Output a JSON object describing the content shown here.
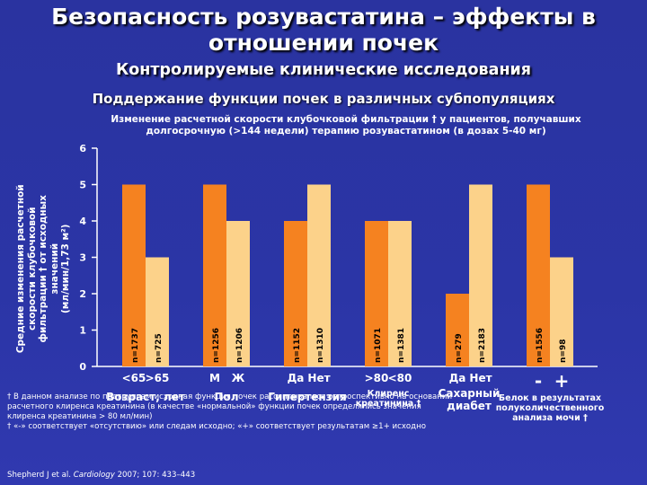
{
  "header": {
    "title_line1": "Безопасность розувастатина – эффекты в",
    "title_line2": "отношении почек",
    "subtitle": "Контролируемые клинические исследования",
    "section": "Поддержание функции почек в различных субпопуляциях"
  },
  "chart_data": {
    "type": "bar",
    "title_line1": "Изменение расчетной скорости клубочковой фильтрации † у пациентов, получавших",
    "title_line2": "долгосрочную (>144 недели) терапию розувастатином (в дозах 5-40 мг)",
    "ylabel_lines": [
      "Средние изменения расчетной",
      "скорости клубочковой",
      "фильтрации † от исходных",
      "значений",
      "(мл/мин/1,73 м²)"
    ],
    "ylim": [
      0,
      6
    ],
    "yticks": [
      "0",
      "1",
      "2",
      "3",
      "4",
      "5",
      "6"
    ],
    "groups": [
      {
        "bars": [
          {
            "value": 5,
            "n": "n=1737"
          },
          {
            "value": 3,
            "n": "n=725"
          }
        ],
        "cat_labels": [
          "<65",
          ">65"
        ],
        "group_label": "Возраст, лет",
        "group_label_2": ""
      },
      {
        "bars": [
          {
            "value": 5,
            "n": "n=1256"
          },
          {
            "value": 4,
            "n": "n=1206"
          }
        ],
        "cat_labels": [
          "М",
          "Ж"
        ],
        "group_label": "Пол",
        "group_label_2": ""
      },
      {
        "bars": [
          {
            "value": 4,
            "n": "n=1152"
          },
          {
            "value": 5,
            "n": "n=1310"
          }
        ],
        "cat_labels": [
          "Да",
          "Нет"
        ],
        "group_label": "Гипертензия",
        "group_label_2": ""
      },
      {
        "bars": [
          {
            "value": 4,
            "n": "n=1071"
          },
          {
            "value": 4,
            "n": "n=1381"
          }
        ],
        "cat_labels": [
          ">80",
          "<80"
        ],
        "group_label": "Клиренс",
        "group_label_2": "креатинина †"
      },
      {
        "bars": [
          {
            "value": 2,
            "n": "n=279"
          },
          {
            "value": 5,
            "n": "n=2183"
          }
        ],
        "cat_labels": [
          "Да",
          "Нет"
        ],
        "group_label": "Сахарный",
        "group_label_2": "диабет"
      },
      {
        "bars": [
          {
            "value": 5,
            "n": "n=1556"
          },
          {
            "value": 3,
            "n": "n=98"
          }
        ],
        "cat_labels": [
          "-",
          "+"
        ],
        "group_label": "Белок в результатах",
        "group_label_2": "полуколичественного",
        "group_label_3": "анализа мочи †"
      }
    ],
    "colors": {
      "first": "#f58220",
      "second": "#fcd28a",
      "axis": "#ffffff",
      "background": "#2b35a6"
    }
  },
  "notes": {
    "line1": "† В данном анализе по подгруппам исходная функция почек рассчитывалась ретроспективно на основании",
    "line2": "расчетного клиренса креатинина (в качестве «нормальной» функции почек определялись значения",
    "line3": "клиренса креатинина > 80 мл/мин)",
    "line4": "† «-» соответствует «отсутствию» или следам исходно; «+» соответствует результатам ≥1+ исходно",
    "ref_authors": "Shepherd J et al.",
    "ref_journal": "Cardiology",
    "ref_rest": "2007; 107: 433–443"
  }
}
